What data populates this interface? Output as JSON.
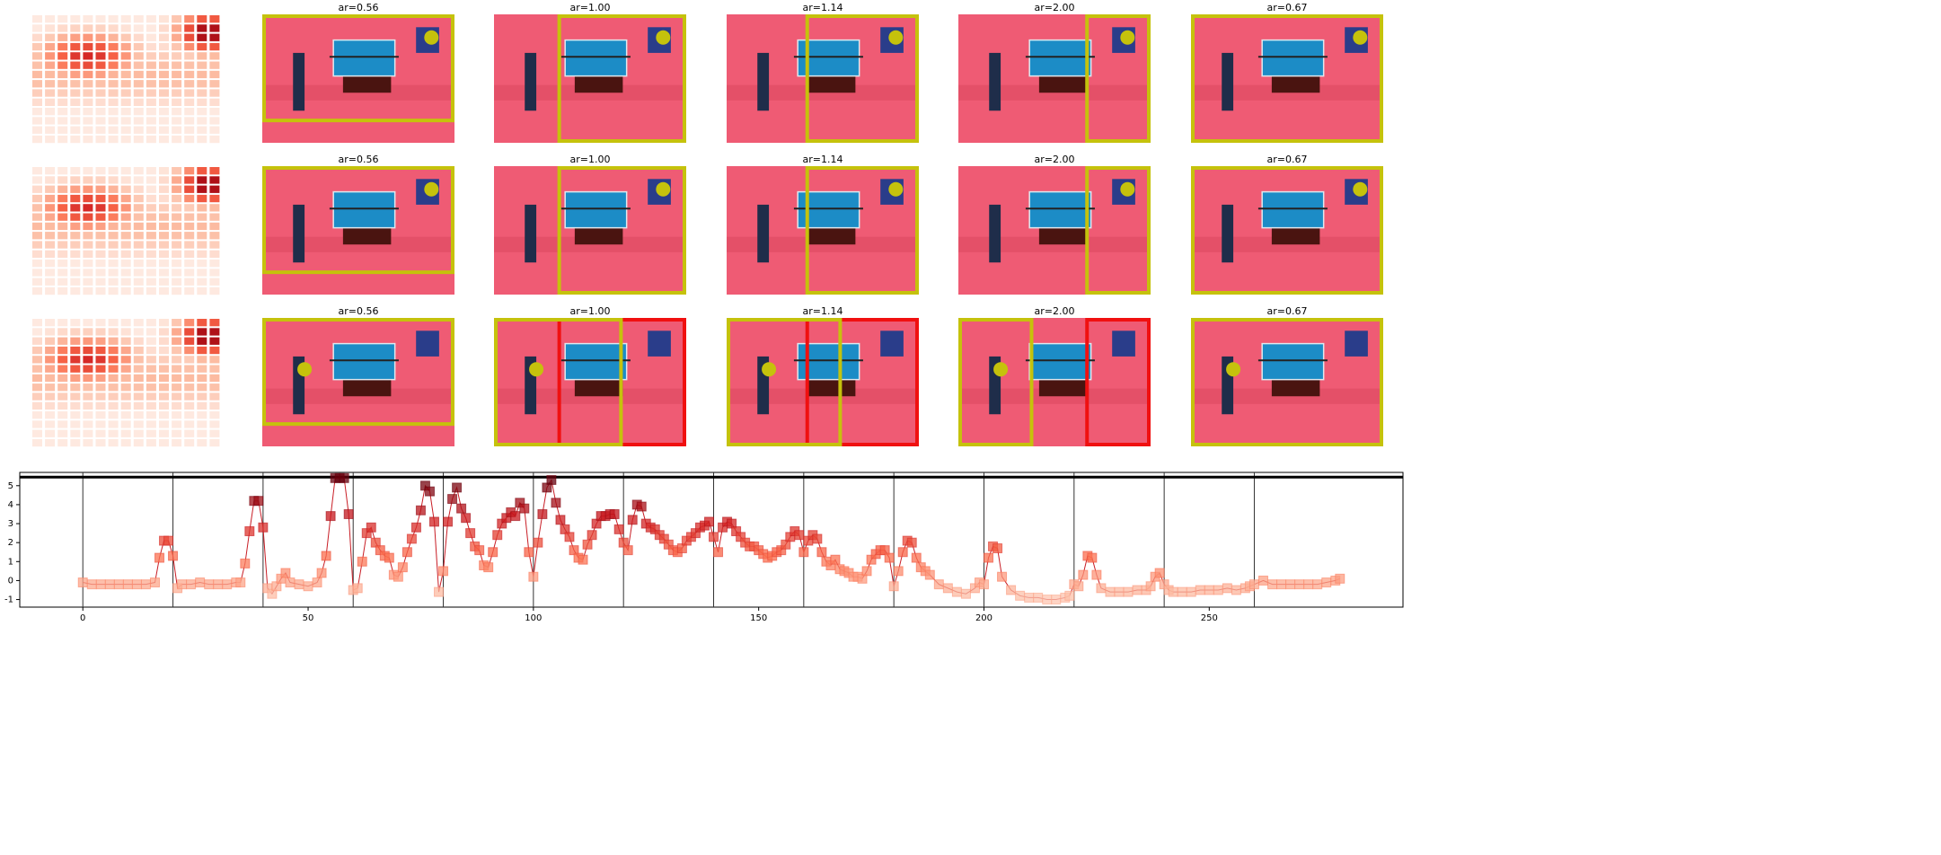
{
  "panels": {
    "rows": [
      {
        "titles": [
          "ar=0.56",
          "ar=1.00",
          "ar=1.14",
          "ar=2.00",
          "ar=0.67"
        ]
      },
      {
        "titles": [
          "ar=0.56",
          "ar=1.00",
          "ar=1.14",
          "ar=2.00",
          "ar=0.67"
        ]
      },
      {
        "titles": [
          "ar=0.56",
          "ar=1.00",
          "ar=1.14",
          "ar=2.00",
          "ar=0.67"
        ]
      }
    ]
  },
  "chart_data": {
    "type": "line",
    "color": "#c81d25",
    "x": [
      0,
      2,
      4,
      6,
      8,
      10,
      12,
      14,
      16,
      17,
      18,
      19,
      20,
      21,
      22,
      24,
      26,
      28,
      30,
      32,
      34,
      35,
      36,
      37,
      38,
      39,
      40,
      41,
      42,
      43,
      44,
      45,
      46,
      48,
      50,
      52,
      53,
      54,
      55,
      56,
      57,
      58,
      59,
      60,
      61,
      62,
      63,
      64,
      65,
      66,
      67,
      68,
      69,
      70,
      71,
      72,
      73,
      74,
      75,
      76,
      77,
      78,
      79,
      80,
      81,
      82,
      83,
      84,
      85,
      86,
      87,
      88,
      89,
      90,
      91,
      92,
      93,
      94,
      95,
      96,
      97,
      98,
      99,
      100,
      101,
      102,
      103,
      104,
      105,
      106,
      107,
      108,
      109,
      110,
      111,
      112,
      113,
      114,
      115,
      116,
      117,
      118,
      119,
      120,
      121,
      122,
      123,
      124,
      125,
      126,
      127,
      128,
      129,
      130,
      131,
      132,
      133,
      134,
      135,
      136,
      137,
      138,
      139,
      140,
      141,
      142,
      143,
      144,
      145,
      146,
      147,
      148,
      149,
      150,
      151,
      152,
      153,
      154,
      155,
      156,
      157,
      158,
      159,
      160,
      161,
      162,
      163,
      164,
      165,
      166,
      167,
      168,
      169,
      170,
      171,
      172,
      173,
      174,
      175,
      176,
      177,
      178,
      179,
      180,
      181,
      182,
      183,
      184,
      185,
      186,
      187,
      188,
      190,
      192,
      194,
      196,
      198,
      199,
      200,
      201,
      202,
      203,
      204,
      206,
      208,
      210,
      212,
      214,
      216,
      218,
      219,
      220,
      221,
      222,
      223,
      224,
      225,
      226,
      228,
      230,
      232,
      234,
      236,
      237,
      238,
      239,
      240,
      241,
      242,
      244,
      246,
      248,
      250,
      252,
      254,
      256,
      258,
      259,
      260,
      262,
      264,
      266,
      268,
      270,
      272,
      274,
      276,
      278,
      279
    ],
    "values": [
      -0.1,
      -0.2,
      -0.2,
      -0.2,
      -0.2,
      -0.2,
      -0.2,
      -0.2,
      -0.1,
      1.2,
      2.1,
      2.1,
      1.3,
      -0.4,
      -0.2,
      -0.2,
      -0.1,
      -0.2,
      -0.2,
      -0.2,
      -0.1,
      -0.1,
      0.9,
      2.6,
      4.2,
      4.2,
      2.8,
      -0.4,
      -0.7,
      -0.3,
      0.1,
      0.4,
      -0.1,
      -0.2,
      -0.3,
      -0.1,
      0.4,
      1.3,
      3.4,
      5.4,
      5.4,
      5.4,
      3.5,
      -0.5,
      -0.4,
      1.0,
      2.5,
      2.8,
      2.0,
      1.6,
      1.3,
      1.2,
      0.3,
      0.2,
      0.7,
      1.5,
      2.2,
      2.8,
      3.7,
      5.0,
      4.7,
      3.1,
      -0.6,
      0.5,
      3.1,
      4.3,
      4.9,
      3.8,
      3.3,
      2.5,
      1.8,
      1.6,
      0.8,
      0.7,
      1.5,
      2.4,
      3.0,
      3.3,
      3.6,
      3.4,
      4.1,
      3.8,
      1.5,
      0.2,
      2.0,
      3.5,
      4.9,
      5.3,
      4.1,
      3.2,
      2.7,
      2.3,
      1.6,
      1.2,
      1.1,
      1.9,
      2.4,
      3.0,
      3.4,
      3.4,
      3.5,
      3.5,
      2.7,
      2.0,
      1.6,
      3.2,
      4.0,
      3.9,
      3.0,
      2.8,
      2.7,
      2.4,
      2.2,
      1.9,
      1.6,
      1.5,
      1.7,
      2.1,
      2.3,
      2.5,
      2.8,
      2.9,
      3.1,
      2.3,
      1.5,
      2.8,
      3.1,
      3.0,
      2.6,
      2.3,
      2.0,
      1.8,
      1.8,
      1.6,
      1.4,
      1.2,
      1.3,
      1.5,
      1.6,
      1.9,
      2.3,
      2.6,
      2.4,
      1.5,
      2.1,
      2.4,
      2.2,
      1.5,
      1.0,
      0.8,
      1.1,
      0.6,
      0.5,
      0.4,
      0.2,
      0.2,
      0.1,
      0.5,
      1.1,
      1.4,
      1.6,
      1.6,
      1.2,
      -0.3,
      0.5,
      1.5,
      2.1,
      2.0,
      1.2,
      0.7,
      0.5,
      0.3,
      -0.2,
      -0.4,
      -0.6,
      -0.7,
      -0.4,
      -0.1,
      -0.2,
      1.2,
      1.8,
      1.7,
      0.2,
      -0.5,
      -0.8,
      -0.9,
      -0.9,
      -1.0,
      -1.0,
      -0.9,
      -0.8,
      -0.2,
      -0.3,
      0.3,
      1.3,
      1.2,
      0.3,
      -0.4,
      -0.6,
      -0.6,
      -0.6,
      -0.5,
      -0.5,
      -0.3,
      0.2,
      0.4,
      -0.2,
      -0.5,
      -0.6,
      -0.6,
      -0.6,
      -0.5,
      -0.5,
      -0.5,
      -0.4,
      -0.5,
      -0.4,
      -0.3,
      -0.2,
      0.0,
      -0.2,
      -0.2,
      -0.2,
      -0.2,
      -0.2,
      -0.2,
      -0.1,
      0.0,
      0.1
    ],
    "xlim": [
      -14,
      293
    ],
    "ylim": [
      -1.4,
      5.7
    ],
    "xticks": [
      0,
      50,
      100,
      150,
      200,
      250
    ],
    "yticks": [
      -1,
      0,
      1,
      2,
      3,
      4,
      5
    ],
    "vlines": [
      0,
      20,
      40,
      60,
      80,
      100,
      120,
      140,
      160,
      180,
      200,
      220,
      240,
      260
    ],
    "hline": 5.45
  }
}
